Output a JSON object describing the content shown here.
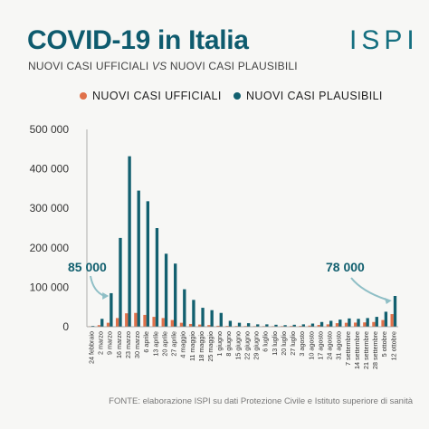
{
  "header": {
    "title": "COVID-19 in Italia",
    "subtitle_a": "NUOVI CASI UFFICIALI ",
    "subtitle_vs": "VS",
    "subtitle_b": " NUOVI CASI PLAUSIBILI",
    "logo": "ISPI"
  },
  "source": "FONTE: elaborazione ISPI su dati Protezione Civile e Istituto superiore di sanità",
  "colors": {
    "official": "#e0714a",
    "plausible": "#12606f",
    "axis_text": "#333333",
    "grid": "#cfcfcf"
  },
  "chart_data": {
    "type": "bar",
    "title": "",
    "xlabel": "",
    "ylabel": "",
    "ylim": [
      0,
      500000
    ],
    "yticks": [
      0,
      100000,
      200000,
      300000,
      400000,
      500000
    ],
    "ytick_labels": [
      "0",
      "100 000",
      "200 000",
      "300 000",
      "400 000",
      "500 000"
    ],
    "legend_position": "top",
    "grid": false,
    "categories": [
      "24 febbraio",
      "2 marzo",
      "9 marzo",
      "16 marzo",
      "23 marzo",
      "30 marzo",
      "6 aprile",
      "13 aprile",
      "20 aprile",
      "27 aprile",
      "4 maggio",
      "11 maggio",
      "18 maggio",
      "25 maggio",
      "1 giugno",
      "8 giugno",
      "15 giugno",
      "22 giugno",
      "29 giugno",
      "6 luglio",
      "13 luglio",
      "20 luglio",
      "27 luglio",
      "3 agosto",
      "10 agosto",
      "17 agosto",
      "24 agosto",
      "31 agosto",
      "7 settembre",
      "14 settembre",
      "21 settembre",
      "28 settembre",
      "5 ottobre",
      "12 ottobre"
    ],
    "series": [
      {
        "name": "NUOVI CASI UFFICIALI",
        "color": "#e0714a",
        "values": [
          1000,
          4000,
          10000,
          22000,
          34000,
          35000,
          30000,
          25000,
          22000,
          17000,
          10000,
          7000,
          5500,
          4200,
          2500,
          2000,
          1800,
          1700,
          1400,
          1400,
          1300,
          1500,
          1800,
          2000,
          3000,
          4500,
          6000,
          9000,
          10000,
          10500,
          11000,
          12000,
          17000,
          32000
        ]
      },
      {
        "name": "NUOVI CASI PLAUSIBILI",
        "color": "#12606f",
        "values": [
          2000,
          20000,
          85000,
          225000,
          432000,
          345000,
          318000,
          250000,
          185000,
          160000,
          95000,
          68000,
          48000,
          42000,
          35000,
          15000,
          10000,
          9000,
          6000,
          6000,
          5000,
          4000,
          5000,
          6000,
          8000,
          12000,
          15000,
          18000,
          21000,
          20000,
          22000,
          25000,
          38000,
          78000
        ]
      }
    ],
    "annotations": [
      {
        "text": "85 000",
        "category": "9 marzo",
        "value": 85000
      },
      {
        "text": "78 000",
        "category": "12 ottobre",
        "value": 78000
      }
    ]
  }
}
